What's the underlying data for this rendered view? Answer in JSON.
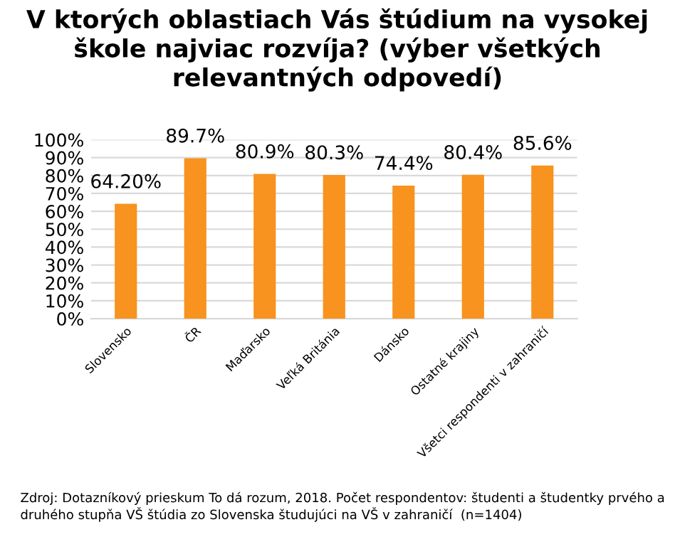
{
  "chart_data": {
    "type": "bar",
    "title": "V ktorých oblastiach Vás štúdium na vysokej škole najviac rozvíja? (výber všetkých relevantných odpovedí)",
    "categories": [
      "Slovensko",
      "ČR",
      "Maďarsko",
      "Veľká Británia",
      "Dánsko",
      "Ostatné krajiny",
      "Všetci respondenti v zahraničí"
    ],
    "values": [
      64.2,
      89.7,
      80.9,
      80.3,
      74.4,
      80.4,
      85.6
    ],
    "value_labels": [
      "64.20%",
      "89.7%",
      "80.9%",
      "80.3%",
      "74.4%",
      "80.4%",
      "85.6%"
    ],
    "color": "#f7931e",
    "ylim": [
      0,
      100
    ],
    "yticks": [
      {
        "value": 0,
        "label": "0%"
      },
      {
        "value": 10,
        "label": "10%"
      },
      {
        "value": 20,
        "label": "20%"
      },
      {
        "value": 30,
        "label": "30%"
      },
      {
        "value": 40,
        "label": "40%"
      },
      {
        "value": 50,
        "label": "50%"
      },
      {
        "value": 60,
        "label": "60%"
      },
      {
        "value": 70,
        "label": "70%"
      },
      {
        "value": 80,
        "label": "80%"
      },
      {
        "value": 90,
        "label": "90%"
      },
      {
        "value": 100,
        "label": "100%"
      }
    ],
    "grid": "y",
    "legend": false,
    "annotations": [
      "Zdroj: Dotazníkový prieskum To dá rozum, 2018. Počet respondentov: študenti a študentky prvého a druhého stupňa VŠ štúdia zo Slovenska študujúci na VŠ v zahraničí  (n=1404)"
    ]
  }
}
